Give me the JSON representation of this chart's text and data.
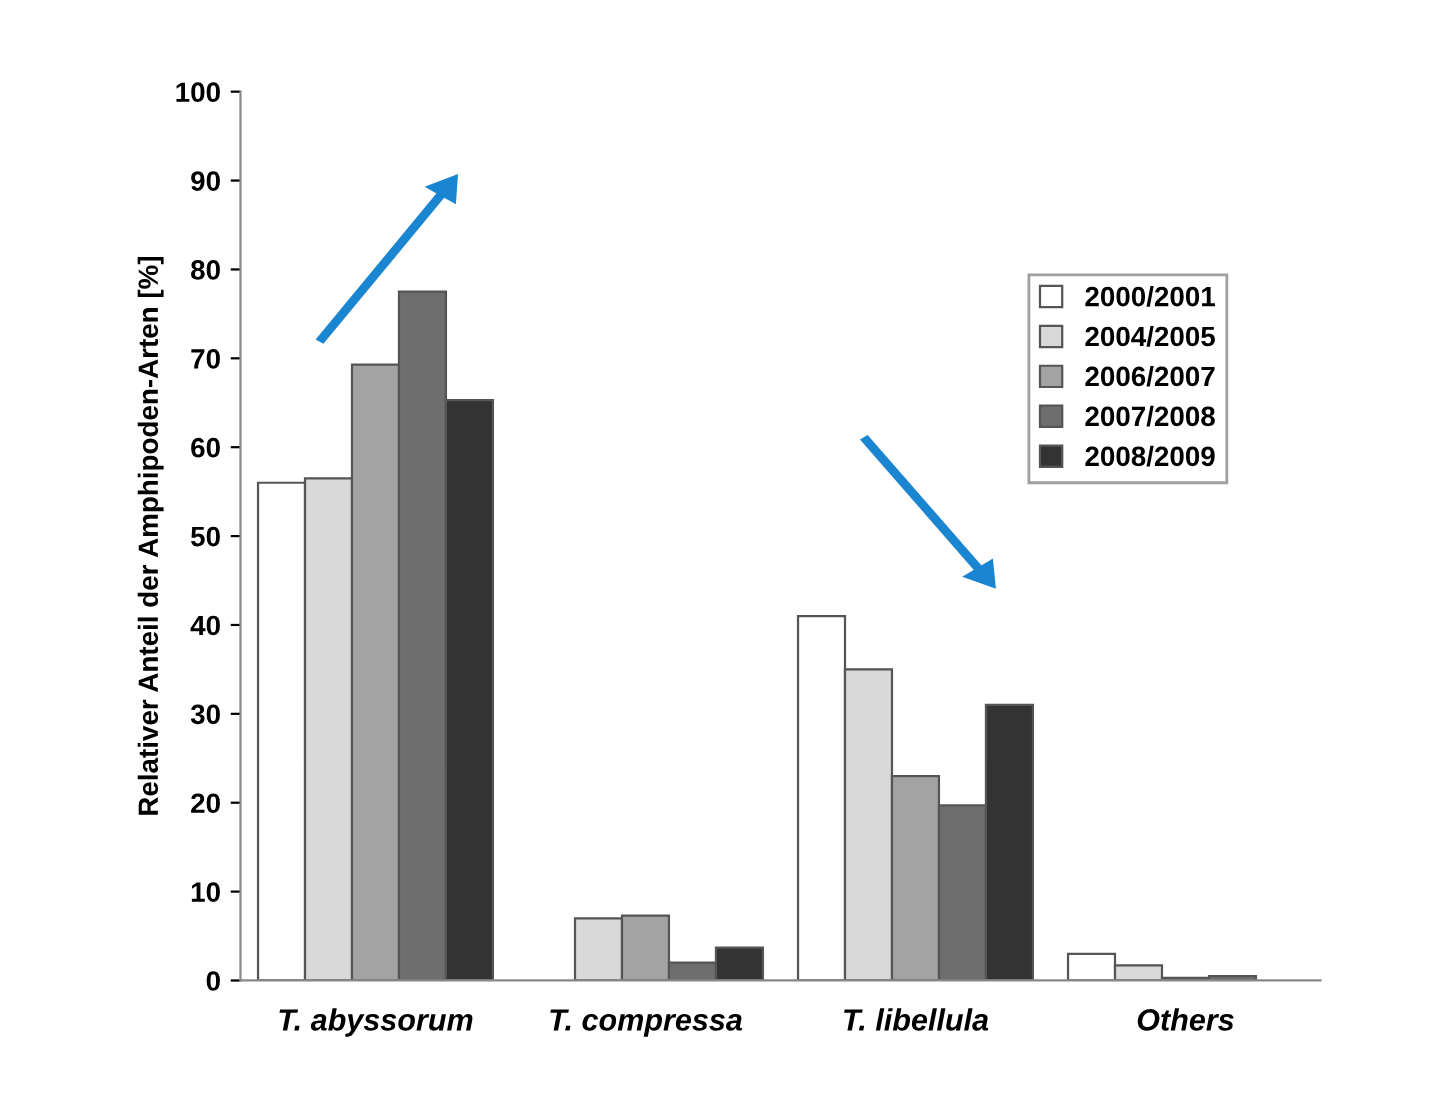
{
  "chart_data": {
    "type": "bar",
    "ylabel": "Relativer Anteil der Amphipoden-Arten [%]",
    "categories": [
      "T. abyssorum",
      "T. compressa",
      "T. libellula",
      "Others"
    ],
    "series": [
      {
        "name": "2000/2001",
        "color": "#ffffff",
        "values": [
          56,
          null,
          41,
          3
        ]
      },
      {
        "name": "2004/2005",
        "color": "#d9d9d9",
        "values": [
          56.5,
          7,
          35,
          1.7
        ]
      },
      {
        "name": "2006/2007",
        "color": "#a3a3a3",
        "values": [
          69.3,
          7.3,
          23,
          0.3
        ]
      },
      {
        "name": "2007/2008",
        "color": "#6e6e6e",
        "values": [
          77.5,
          2,
          19.7,
          0.5
        ]
      },
      {
        "name": "2008/2009",
        "color": "#333333",
        "values": [
          65.3,
          3.7,
          31,
          null
        ]
      }
    ],
    "ylim": [
      0,
      100
    ],
    "yticks": [
      0,
      10,
      20,
      30,
      40,
      50,
      60,
      70,
      80,
      90,
      100
    ],
    "grid": false,
    "legend": "top right"
  }
}
